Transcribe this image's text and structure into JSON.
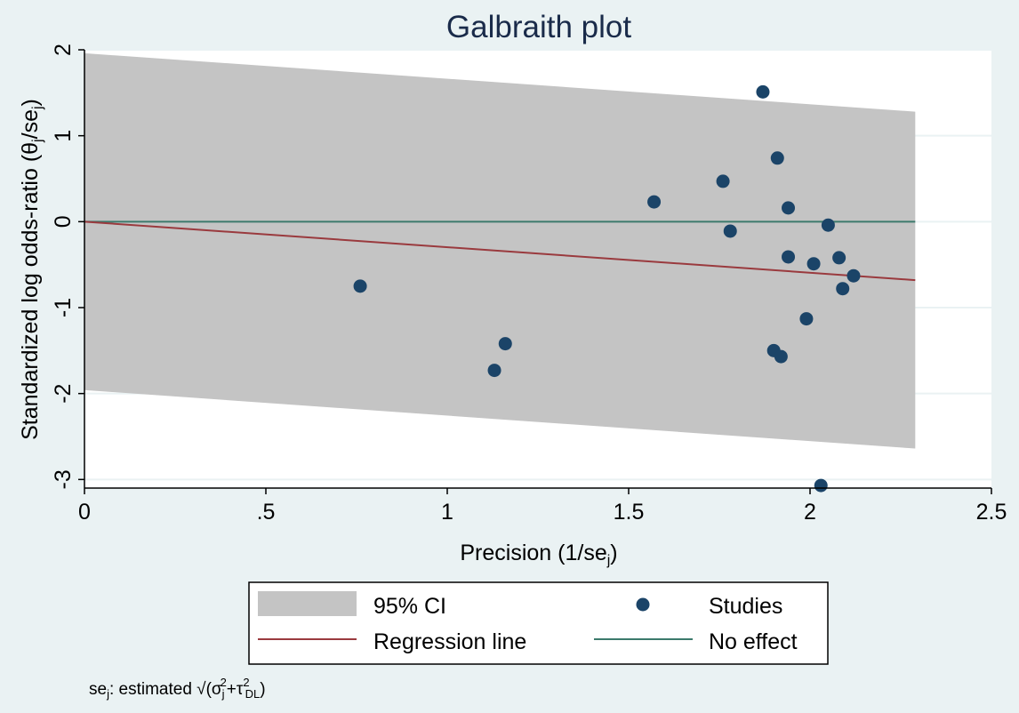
{
  "chart_data": {
    "type": "scatter",
    "title": "Galbraith plot",
    "xlabel_main": "Precision (1/se",
    "xlabel_sub": "j",
    "xlabel_end": ")",
    "ylabel_main": "Standardized log odds-ratio (θ",
    "ylabel_sub": "j",
    "ylabel_mid": "/se",
    "ylabel_sub2": "j",
    "ylabel_end": ")",
    "xlim": [
      0,
      2.5
    ],
    "ylim": [
      -3.1,
      2.0
    ],
    "x_ticks": [
      0,
      0.5,
      1,
      1.5,
      2,
      2.5
    ],
    "x_tick_labels": [
      "0",
      ".5",
      "1",
      "1.5",
      "2",
      "2.5"
    ],
    "y_ticks": [
      -3,
      -2,
      -1,
      0,
      1,
      2
    ],
    "y_tick_labels": [
      "-3",
      "-2",
      "-1",
      "0",
      "1",
      "2"
    ],
    "grid": true,
    "ci_band": {
      "name": "95% CI",
      "x": [
        0,
        2.29
      ],
      "upper": [
        1.96,
        1.28
      ],
      "lower": [
        -1.96,
        -2.64
      ],
      "color": "#c4c4c4"
    },
    "regression_line": {
      "name": "Regression line",
      "x": [
        0,
        2.29
      ],
      "y": [
        0,
        -0.68
      ],
      "color": "#9a3a3e"
    },
    "no_effect_line": {
      "name": "No effect",
      "x": [
        0,
        2.29
      ],
      "y": [
        0,
        0
      ],
      "color": "#3c7a6c"
    },
    "studies": {
      "name": "Studies",
      "color": "#1b4468",
      "points": [
        {
          "x": 0.76,
          "y": -0.75
        },
        {
          "x": 1.13,
          "y": -1.73
        },
        {
          "x": 1.16,
          "y": -1.42
        },
        {
          "x": 1.57,
          "y": 0.23
        },
        {
          "x": 1.76,
          "y": 0.47
        },
        {
          "x": 1.78,
          "y": -0.11
        },
        {
          "x": 1.87,
          "y": 1.51
        },
        {
          "x": 1.9,
          "y": -1.5
        },
        {
          "x": 1.91,
          "y": 0.74
        },
        {
          "x": 1.92,
          "y": -1.57
        },
        {
          "x": 1.94,
          "y": 0.16
        },
        {
          "x": 1.94,
          "y": -0.41
        },
        {
          "x": 1.99,
          "y": -1.13
        },
        {
          "x": 2.01,
          "y": -0.49
        },
        {
          "x": 2.03,
          "y": -3.07
        },
        {
          "x": 2.05,
          "y": -0.04
        },
        {
          "x": 2.08,
          "y": -0.42
        },
        {
          "x": 2.09,
          "y": -0.78
        },
        {
          "x": 2.12,
          "y": -0.63
        }
      ]
    },
    "legend": {
      "position": "bottom",
      "items": [
        "95% CI",
        "Studies",
        "Regression line",
        "No effect"
      ]
    },
    "note": {
      "prefix": "se",
      "sub": "j",
      "text": ": estimated √(σ",
      "sigma_sub": "j",
      "sigma_sup": "2",
      "plus": "+τ",
      "tau_sup": "2",
      "tau_sub": "DL",
      "end": ")"
    }
  }
}
